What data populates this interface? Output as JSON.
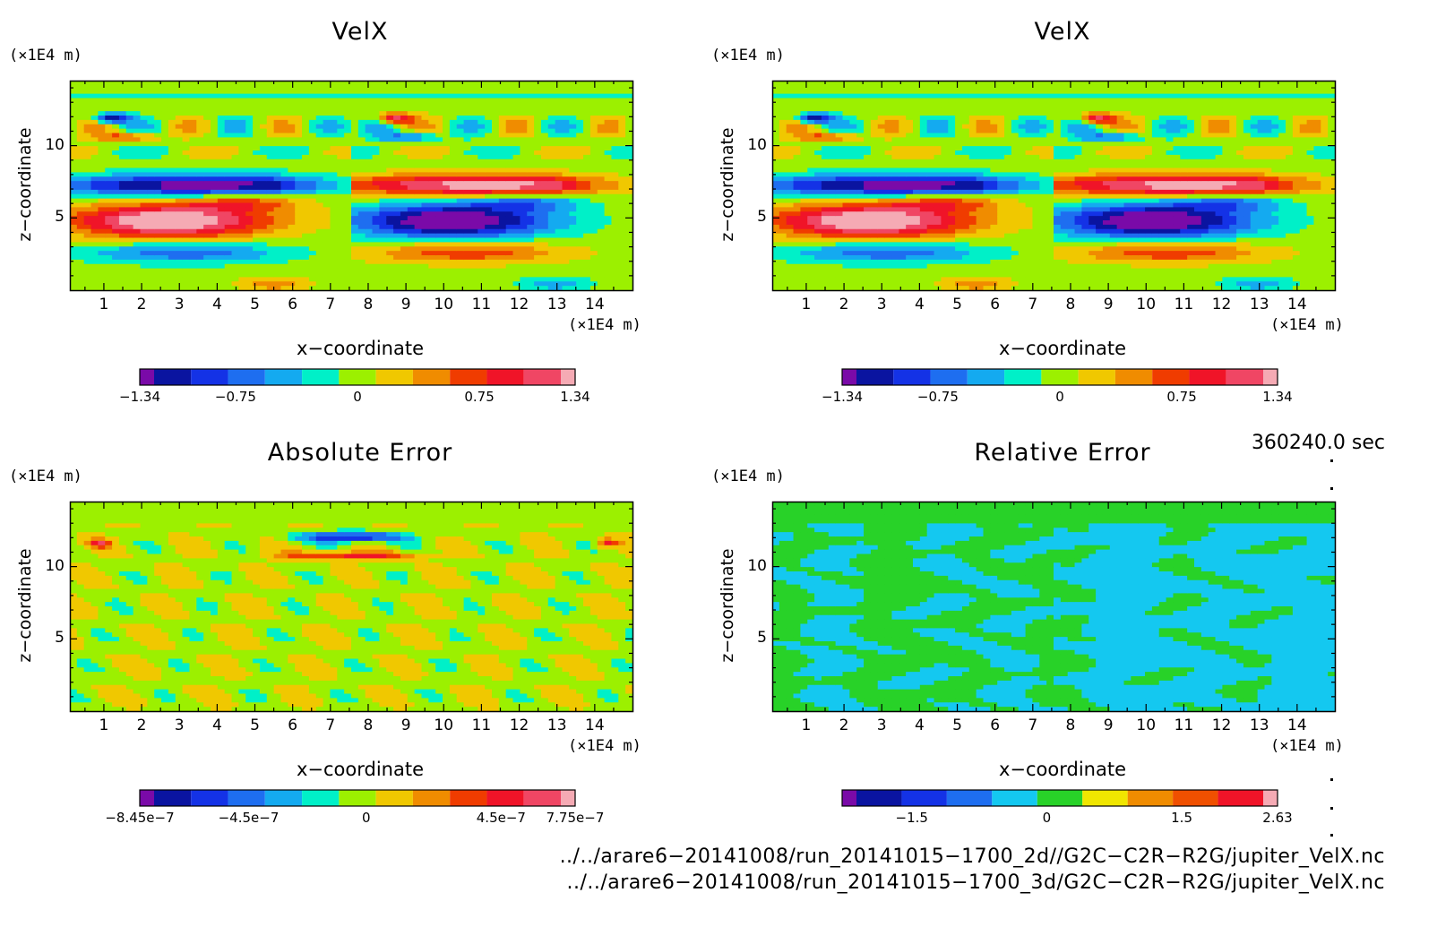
{
  "chart_data": [
    {
      "type": "heatmap",
      "title": "VelX",
      "xlabel": "x−coordinate",
      "ylabel": "z−coordinate",
      "x_unit": "(×1E4 m)",
      "y_unit": "(×1E4 m)",
      "x_ticks": [
        "1",
        "2",
        "3",
        "4",
        "5",
        "6",
        "7",
        "8",
        "9",
        "10",
        "11",
        "12",
        "13",
        "14"
      ],
      "y_ticks": [
        "5",
        "10"
      ],
      "xlim": [
        0.1,
        15.0
      ],
      "ylim": [
        0.0,
        14.5
      ],
      "colorbar": {
        "labels": [
          "−1.34",
          "−0.75",
          "0",
          "0.75",
          "1.34"
        ],
        "min": -1.34,
        "max": 1.34
      },
      "palette": "velocity"
    },
    {
      "type": "heatmap",
      "title": "VelX",
      "xlabel": "x−coordinate",
      "ylabel": "z−coordinate",
      "x_unit": "(×1E4 m)",
      "y_unit": "(×1E4 m)",
      "x_ticks": [
        "1",
        "2",
        "3",
        "4",
        "5",
        "6",
        "7",
        "8",
        "9",
        "10",
        "11",
        "12",
        "13",
        "14"
      ],
      "y_ticks": [
        "5",
        "10"
      ],
      "xlim": [
        0.1,
        15.0
      ],
      "ylim": [
        0.0,
        14.5
      ],
      "colorbar": {
        "labels": [
          "−1.34",
          "−0.75",
          "0",
          "0.75",
          "1.34"
        ],
        "min": -1.34,
        "max": 1.34
      },
      "palette": "velocity"
    },
    {
      "type": "heatmap",
      "title": "Absolute Error",
      "xlabel": "x−coordinate",
      "ylabel": "z−coordinate",
      "x_unit": "(×1E4 m)",
      "y_unit": "(×1E4 m)",
      "x_ticks": [
        "1",
        "2",
        "3",
        "4",
        "5",
        "6",
        "7",
        "8",
        "9",
        "10",
        "11",
        "12",
        "13",
        "14"
      ],
      "y_ticks": [
        "5",
        "10"
      ],
      "xlim": [
        0.1,
        15.0
      ],
      "ylim": [
        0.0,
        14.5
      ],
      "colorbar": {
        "labels": [
          "−8.45e−7",
          "−4.5e−7",
          "0",
          "4.5e−7",
          "7.75e−7"
        ],
        "min": -8.45e-07,
        "max": 7.75e-07
      },
      "palette": "abs-error"
    },
    {
      "type": "heatmap",
      "title": "Relative Error",
      "xlabel": "x−coordinate",
      "ylabel": "z−coordinate",
      "x_unit": "(×1E4 m)",
      "y_unit": "(×1E4 m)",
      "x_ticks": [
        "1",
        "2",
        "3",
        "4",
        "5",
        "6",
        "7",
        "8",
        "9",
        "10",
        "11",
        "12",
        "13",
        "14"
      ],
      "y_ticks": [
        "5",
        "10"
      ],
      "xlim": [
        0.1,
        15.0
      ],
      "ylim": [
        0.0,
        14.5
      ],
      "colorbar": {
        "labels": [
          "−1.5",
          "0",
          "1.5",
          "2.63"
        ],
        "max": 2.63
      },
      "palette": "rel-error"
    }
  ],
  "time_label": "360240.0 sec",
  "footer": {
    "file1": "../../arare6−20141008/run_20141015−1700_2d//G2C−C2R−R2G/jupiter_VelX.nc",
    "file2": "../../arare6−20141008/run_20141015−1700_3d/G2C−C2R−R2G/jupiter_VelX.nc"
  },
  "colors": {
    "scale": [
      "#7a0aa8",
      "#0a14a0",
      "#1432e6",
      "#1e6ef0",
      "#14aaf0",
      "#00f0c8",
      "#9cf000",
      "#f0c800",
      "#f08c00",
      "#f03c00",
      "#f01428",
      "#f04664",
      "#f5aab4"
    ]
  }
}
